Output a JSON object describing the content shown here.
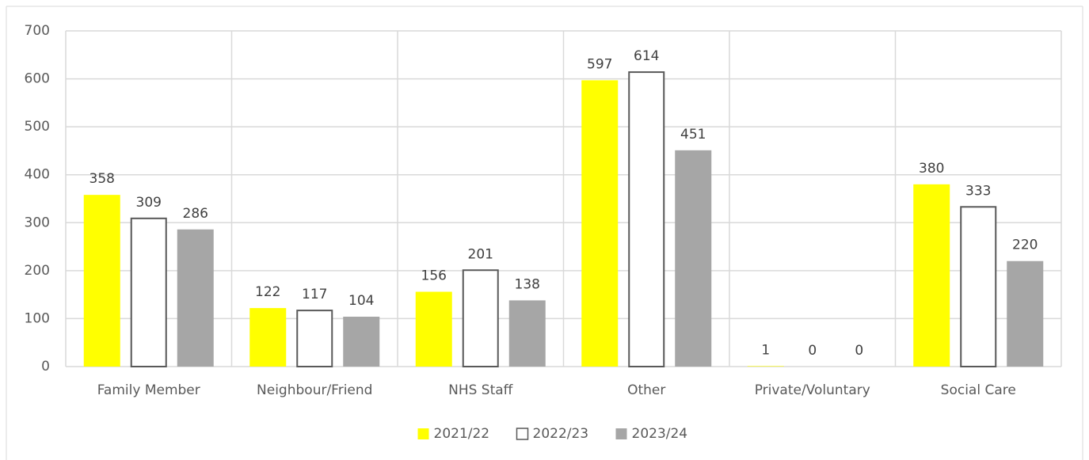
{
  "chart_data": {
    "type": "bar",
    "categories": [
      "Family Member",
      "Neighbour/Friend",
      "NHS Staff",
      "Other",
      "Private/Voluntary",
      "Social Care"
    ],
    "series": [
      {
        "name": "2021/22",
        "color": "#ffff00",
        "values": [
          358,
          122,
          156,
          597,
          1,
          380
        ]
      },
      {
        "name": "2022/23",
        "color": "#ffffff",
        "edgecolor": "#595959",
        "values": [
          309,
          117,
          201,
          614,
          0,
          333
        ]
      },
      {
        "name": "2023/24",
        "color": "#a6a6a6",
        "values": [
          286,
          104,
          138,
          451,
          0,
          220
        ]
      }
    ],
    "ylim": [
      0,
      700
    ],
    "yticks": [
      0,
      100,
      200,
      300,
      400,
      500,
      600,
      700
    ],
    "grid": true,
    "legend": "bottom"
  }
}
